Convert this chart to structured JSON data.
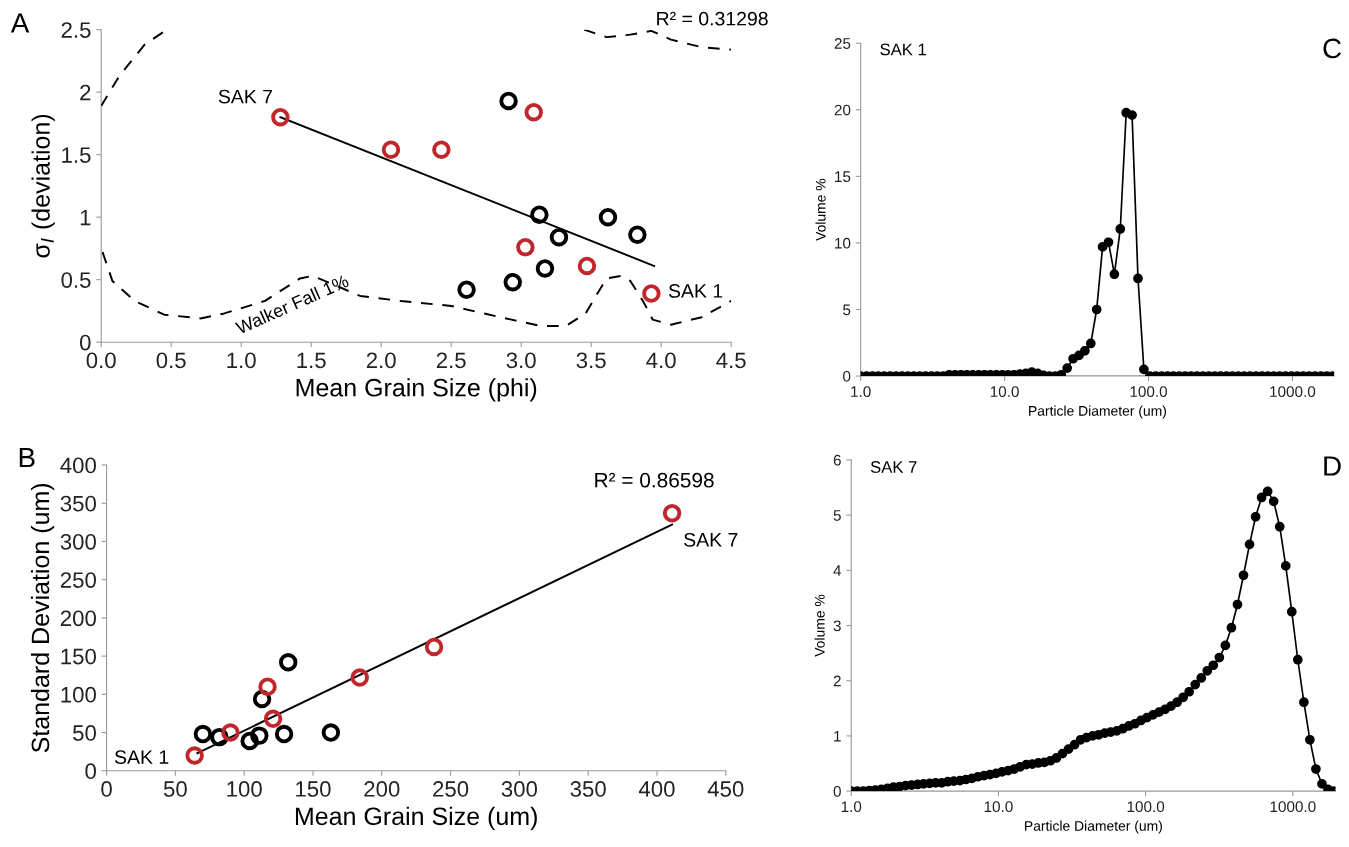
{
  "chart_data": [
    {
      "type": "scatter",
      "xlabel": "Mean Grain Size (phi)",
      "ylabel": "σ$_{I}$ (deviation)",
      "xlim": [
        0,
        4.5
      ],
      "ylim": [
        0,
        2.5
      ],
      "xticks": [
        {
          "value": 0,
          "label": "0.0"
        },
        {
          "value": 0.5,
          "label": "0.5"
        },
        {
          "value": 1,
          "label": "1.0"
        },
        {
          "value": 1.5,
          "label": "1.5"
        },
        {
          "value": 2,
          "label": "2.0"
        },
        {
          "value": 2.5,
          "label": "2.5"
        },
        {
          "value": 3,
          "label": "3.0"
        },
        {
          "value": 3.5,
          "label": "3.5"
        },
        {
          "value": 4,
          "label": "4.0"
        },
        {
          "value": 4.5,
          "label": "4.5"
        }
      ],
      "yticks": [
        0,
        0.5,
        1,
        1.5,
        2,
        2.5
      ],
      "series": [
        {
          "type": "line",
          "color": "#000000",
          "marker": "none",
          "line_style": "dashed",
          "x": [
            0.01,
            0.08,
            0.24,
            0.45,
            0.71,
            0.88,
            1.17,
            1.42,
            1.51,
            1.64,
            1.85,
            2.14,
            2.5,
            2.85,
            3.14,
            3.32,
            3.46,
            3.61,
            3.71,
            3.78,
            3.87,
            3.94,
            4.07,
            4.29,
            4.5,
            null,
            0,
            0.13,
            0.31,
            0.47,
            null,
            3.45,
            3.61,
            3.78,
            3.93,
            4.07,
            4.29,
            4.5
          ],
          "values": [
            0.72,
            0.49,
            0.33,
            0.22,
            0.19,
            0.23,
            0.33,
            0.51,
            0.53,
            0.47,
            0.37,
            0.33,
            0.29,
            0.2,
            0.13,
            0.13,
            0.23,
            0.51,
            0.53,
            0.49,
            0.33,
            0.18,
            0.14,
            0.2,
            0.33,
            null,
            1.89,
            2.13,
            2.38,
            2.5,
            null,
            2.5,
            2.44,
            2.46,
            2.49,
            2.42,
            2.36,
            2.34
          ]
        },
        {
          "type": "line",
          "color": "#000000",
          "marker": "none",
          "line_style": "solid",
          "x": [
            1.28,
            3.95
          ],
          "values": [
            1.8,
            0.61
          ]
        },
        {
          "type": "scatter",
          "color": "#000000",
          "marker": "circle",
          "x": [
            2.91,
            3.13,
            3.62,
            3.83,
            3.27,
            3.17,
            2.94,
            2.61
          ],
          "values": [
            1.93,
            1.02,
            1.0,
            0.86,
            0.84,
            0.59,
            0.48,
            0.42
          ]
        },
        {
          "type": "scatter",
          "color": "#c0272d",
          "marker": "circle",
          "x": [
            1.28,
            2.07,
            2.43,
            3.09,
            3.03,
            3.47,
            3.93
          ],
          "values": [
            1.8,
            1.54,
            1.54,
            1.84,
            0.76,
            0.61,
            0.39
          ]
        }
      ],
      "annotations": [
        "A",
        "R² = 0.31298",
        {
          "text": "SAK 7",
          "x": 1.28,
          "y": 1.8
        },
        {
          "text": "SAK 1",
          "x": 3.93,
          "y": 0.39
        },
        {
          "text": "Walker Fall 1%",
          "x": 1.17,
          "y": 0.33
        }
      ]
    },
    {
      "type": "scatter",
      "xlabel": "Mean Grain Size (um)",
      "ylabel": "Standard Deviation (um)",
      "xlim": [
        0,
        450
      ],
      "ylim": [
        0,
        400
      ],
      "xticks": [
        0,
        50,
        100,
        150,
        200,
        250,
        300,
        350,
        400,
        450
      ],
      "yticks": [
        0,
        50,
        100,
        150,
        200,
        250,
        300,
        350,
        400
      ],
      "series": [
        {
          "type": "line",
          "color": "#000000",
          "marker": "none",
          "line_style": "solid",
          "x": [
            66,
            411
          ],
          "values": [
            23,
            322
          ]
        },
        {
          "type": "scatter",
          "color": "#000000",
          "marker": "circle",
          "x": [
            70,
            82,
            104,
            111,
            113,
            129,
            132,
            163
          ],
          "values": [
            48,
            44,
            39,
            46,
            94,
            48,
            142,
            50
          ]
        },
        {
          "type": "scatter",
          "color": "#c0272d",
          "marker": "circle",
          "x": [
            64,
            90,
            117,
            121,
            184,
            238,
            411
          ],
          "values": [
            20,
            50,
            110,
            68,
            122,
            162,
            337
          ]
        }
      ],
      "annotations": [
        "B",
        "R² = 0.86598",
        {
          "text": "SAK 1",
          "x": 64,
          "y": 20
        },
        {
          "text": "SAK 7",
          "x": 411,
          "y": 337
        }
      ]
    },
    {
      "type": "line",
      "xlabel": "Particle Diameter (um)",
      "ylabel": "Volume %",
      "log": "x",
      "xlim": [
        1,
        1950
      ],
      "ylim": [
        0,
        25
      ],
      "xticks": [
        {
          "value": 1,
          "label": "1.0"
        },
        {
          "value": 10,
          "label": "10.0"
        },
        {
          "value": 100,
          "label": "100.0"
        },
        {
          "value": 1000,
          "label": "1000.0"
        }
      ],
      "yticks": [
        0,
        5,
        10,
        15,
        20,
        25
      ],
      "marker": "circle",
      "line_style": "solid",
      "ref_lines": [
        {
          "axis": "y",
          "value": 0,
          "color": "#e8907a"
        }
      ],
      "x": [
        1,
        1.099,
        1.208,
        1.327,
        1.459,
        1.603,
        1.762,
        1.936,
        2.128,
        2.339,
        2.57,
        2.825,
        3.105,
        3.412,
        3.75,
        4.121,
        4.529,
        4.977,
        5.47,
        6.012,
        6.607,
        7.261,
        7.98,
        8.77,
        9.638,
        10.59,
        11.64,
        12.79,
        14.06,
        15.45,
        16.98,
        18.66,
        20.51,
        22.54,
        24.77,
        27.23,
        29.92,
        32.89,
        36.14,
        39.72,
        43.65,
        47.97,
        52.72,
        57.94,
        63.68,
        69.98,
        76.91,
        84.53,
        92.9,
        102.1,
        112.2,
        123.3,
        135.5,
        148.9,
        163.7,
        179.9,
        197.7,
        217.3,
        238.8,
        262.4,
        288.4,
        317,
        348.3,
        382.8,
        420.7,
        462.4,
        508.2,
        558.5,
        613.8,
        674.6,
        741.3,
        814.7,
        895.4,
        984,
        1081,
        1189,
        1306,
        1435,
        1578,
        1734,
        1905
      ],
      "series": [
        {
          "color": "#000000",
          "values": [
            0,
            0,
            0,
            0,
            0,
            0,
            0,
            0,
            0,
            0,
            0,
            0,
            0,
            0,
            0,
            0.1,
            0.1,
            0.1,
            0.1,
            0.1,
            0.1,
            0.1,
            0.1,
            0.1,
            0.1,
            0.1,
            0.1,
            0.15,
            0.2,
            0.3,
            0.2,
            0.05,
            0,
            0,
            0.1,
            0.6,
            1.3,
            1.55,
            1.9,
            2.45,
            5.0,
            9.7,
            10.05,
            7.65,
            11.05,
            19.78,
            19.6,
            7.33,
            0.5,
            0,
            0,
            0,
            0,
            0,
            0,
            0,
            0,
            0,
            0,
            0,
            0,
            0,
            0,
            0,
            0,
            0,
            0,
            0,
            0,
            0,
            0,
            0,
            0,
            0,
            0,
            0,
            0,
            0,
            0,
            0,
            0
          ]
        }
      ],
      "annotations": [
        "C",
        "SAK 1"
      ]
    },
    {
      "type": "line",
      "xlabel": "Particle Diameter (um)",
      "ylabel": "Volume %",
      "log": "x",
      "xlim": [
        1,
        1950
      ],
      "ylim": [
        0,
        6
      ],
      "xticks": [
        {
          "value": 1,
          "label": "1.0"
        },
        {
          "value": 10,
          "label": "10.0"
        },
        {
          "value": 100,
          "label": "100.0"
        },
        {
          "value": 1000,
          "label": "1000.0"
        }
      ],
      "yticks": [
        0,
        1,
        2,
        3,
        4,
        5,
        6
      ],
      "marker": "circle",
      "line_style": "solid",
      "x": [
        1,
        1.099,
        1.208,
        1.327,
        1.459,
        1.603,
        1.762,
        1.936,
        2.128,
        2.339,
        2.57,
        2.825,
        3.105,
        3.412,
        3.75,
        4.121,
        4.529,
        4.977,
        5.47,
        6.012,
        6.607,
        7.261,
        7.98,
        8.77,
        9.638,
        10.59,
        11.64,
        12.79,
        14.06,
        15.45,
        16.98,
        18.66,
        20.51,
        22.54,
        24.77,
        27.23,
        29.92,
        32.89,
        36.14,
        39.72,
        43.65,
        47.97,
        52.72,
        57.94,
        63.68,
        69.98,
        76.91,
        84.53,
        92.9,
        102.1,
        112.2,
        123.3,
        135.5,
        148.9,
        163.7,
        179.9,
        197.7,
        217.3,
        238.8,
        262.4,
        288.4,
        317,
        348.3,
        382.8,
        420.7,
        462.4,
        508.2,
        558.5,
        613.8,
        674.6,
        741.3,
        814.7,
        895.4,
        984,
        1081,
        1189,
        1306,
        1435,
        1578,
        1734,
        1905
      ],
      "series": [
        {
          "color": "#000000",
          "values": [
            0,
            0,
            0,
            0.01,
            0.02,
            0.03,
            0.05,
            0.07,
            0.08,
            0.1,
            0.11,
            0.12,
            0.13,
            0.14,
            0.15,
            0.15,
            0.17,
            0.18,
            0.19,
            0.21,
            0.23,
            0.26,
            0.28,
            0.3,
            0.32,
            0.35,
            0.37,
            0.4,
            0.44,
            0.48,
            0.49,
            0.51,
            0.52,
            0.55,
            0.6,
            0.68,
            0.76,
            0.84,
            0.93,
            0.97,
            1.0,
            1.02,
            1.05,
            1.07,
            1.09,
            1.13,
            1.18,
            1.22,
            1.28,
            1.33,
            1.38,
            1.43,
            1.48,
            1.54,
            1.61,
            1.7,
            1.8,
            1.93,
            2.05,
            2.18,
            2.28,
            2.42,
            2.64,
            2.96,
            3.38,
            3.91,
            4.47,
            4.97,
            5.32,
            5.43,
            5.25,
            4.79,
            4.08,
            3.25,
            2.38,
            1.61,
            0.93,
            0.4,
            0.13,
            0.03,
            0
          ]
        }
      ],
      "annotations": [
        "D",
        "SAK 7"
      ]
    }
  ]
}
